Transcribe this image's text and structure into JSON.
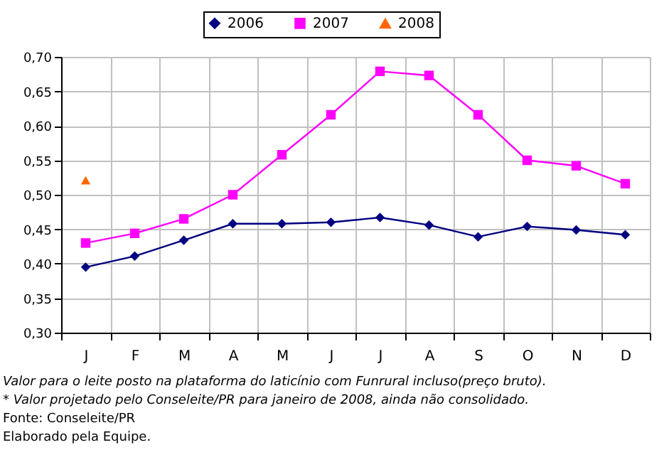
{
  "chart_data": {
    "type": "line",
    "categories": [
      "J",
      "F",
      "M",
      "A",
      "M",
      "J",
      "J",
      "A",
      "S",
      "O",
      "N",
      "D"
    ],
    "series": [
      {
        "name": "2006",
        "color": "#000080",
        "marker": "diamond",
        "values": [
          0.395,
          0.411,
          0.434,
          0.458,
          0.458,
          0.46,
          0.467,
          0.456,
          0.439,
          0.454,
          0.449,
          0.442
        ]
      },
      {
        "name": "2007",
        "color": "#ff00ff",
        "marker": "square",
        "values": [
          0.43,
          0.444,
          0.465,
          0.5,
          0.558,
          0.616,
          0.679,
          0.673,
          0.616,
          0.55,
          0.542,
          0.516
        ]
      },
      {
        "name": "2008",
        "color": "#ff6600",
        "marker": "triangle",
        "values": [
          0.521,
          null,
          null,
          null,
          null,
          null,
          null,
          null,
          null,
          null,
          null,
          null
        ]
      }
    ],
    "ylim": [
      0.3,
      0.7
    ],
    "yticks": [
      {
        "value": 0.3,
        "label": "0,30"
      },
      {
        "value": 0.35,
        "label": "0,35"
      },
      {
        "value": 0.4,
        "label": "0,40"
      },
      {
        "value": 0.45,
        "label": "0,45"
      },
      {
        "value": 0.5,
        "label": "0,50"
      },
      {
        "value": 0.55,
        "label": "0,55"
      },
      {
        "value": 0.6,
        "label": "0,60"
      },
      {
        "value": 0.65,
        "label": "0,65"
      },
      {
        "value": 0.7,
        "label": "0,70"
      }
    ],
    "grid": true,
    "legend": "top",
    "annotations": [
      "Valor para o leite posto na plataforma do laticínio com Funrural incluso(preço bruto).",
      "* Valor projetado pelo Conseleite/PR para janeiro de 2008, ainda não consolidado.",
      "Fonte: Conseleite/PR",
      "Elaborado pela Equipe."
    ]
  }
}
